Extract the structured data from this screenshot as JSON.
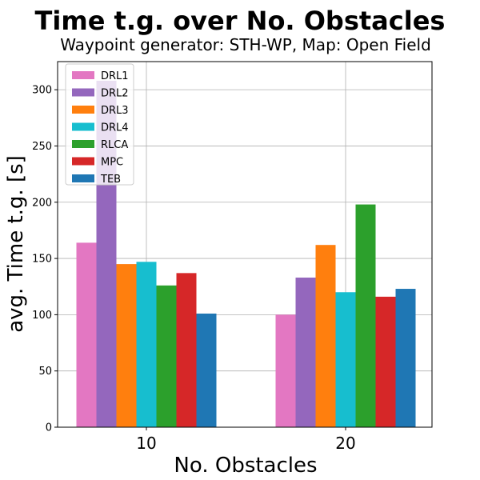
{
  "chart_data": {
    "type": "bar",
    "title": "Time t.g. over No. Obstacles",
    "subtitle": "Waypoint generator: STH-WP, Map: Open Field",
    "xlabel": "No. Obstacles",
    "ylabel": "avg. Time t.g. [s]",
    "categories": [
      "10",
      "20"
    ],
    "ylim": [
      0,
      325
    ],
    "yticks": [
      0,
      50,
      100,
      150,
      200,
      250,
      300
    ],
    "grid": true,
    "legend_position": "top-left",
    "series": [
      {
        "name": "DRL1",
        "color": "#e377c2",
        "values": [
          164,
          100
        ]
      },
      {
        "name": "DRL2",
        "color": "#9467bd",
        "values": [
          308,
          133
        ]
      },
      {
        "name": "DRL3",
        "color": "#ff7f0e",
        "values": [
          145,
          162
        ]
      },
      {
        "name": "DRL4",
        "color": "#17becf",
        "values": [
          147,
          120
        ]
      },
      {
        "name": "RLCA",
        "color": "#2ca02c",
        "values": [
          126,
          198
        ]
      },
      {
        "name": "MPC",
        "color": "#d62728",
        "values": [
          137,
          116
        ]
      },
      {
        "name": "TEB",
        "color": "#1f77b4",
        "values": [
          101,
          123
        ]
      }
    ]
  }
}
